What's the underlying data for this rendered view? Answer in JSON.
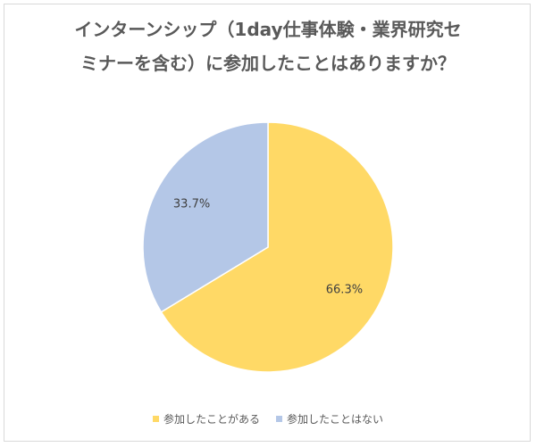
{
  "chart_data": {
    "type": "pie",
    "title_lines": [
      "インターンシップ（1day仕事体験・業界研究セ",
      "ミナーを含む）に参加したことはありますか？"
    ],
    "categories": [
      "参加したことがある",
      "参加したことはない"
    ],
    "values": [
      66.3,
      33.7
    ],
    "data_labels": [
      "66.3%",
      "33.7%"
    ],
    "colors": [
      "#FFD966",
      "#B4C7E7"
    ],
    "legend_position": "bottom",
    "start_angle_deg": 0,
    "direction": "clockwise"
  }
}
